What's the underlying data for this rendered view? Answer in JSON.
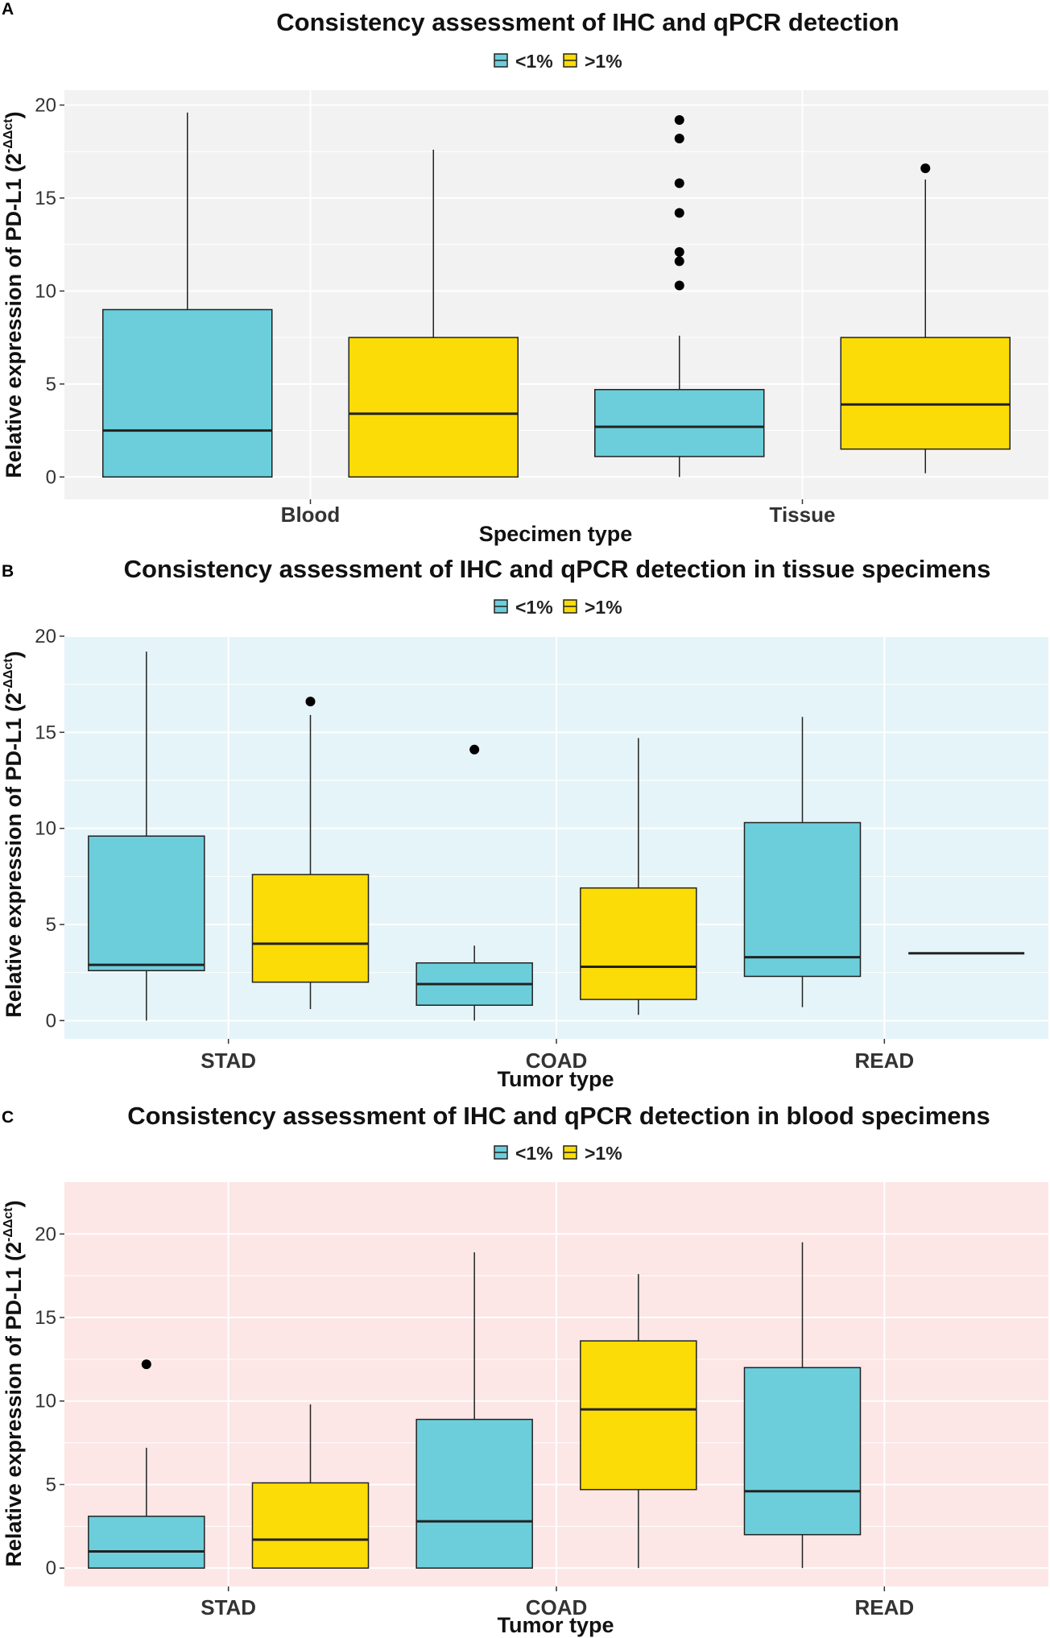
{
  "chart_data": [
    {
      "panel_label": "A",
      "type": "box",
      "title": "Consistency assessment of IHC and qPCR detection",
      "xlabel": "Specimen type",
      "ylabel_main": "Relative expression of PD-L1 (2",
      "ylabel_sup": "-ΔΔct",
      "ylabel_close": ")",
      "legend": [
        {
          "label": "<1%",
          "color": "#6ccedb"
        },
        {
          "label": ">1%",
          "color": "#fcdc06"
        }
      ],
      "categories": [
        "Blood",
        "Tissue"
      ],
      "ylim": [
        -1.2,
        20.8
      ],
      "yticks": [
        0,
        5,
        10,
        15,
        20
      ],
      "background": "#f1f2f1",
      "boxes": [
        {
          "category": "Blood",
          "group": "<1%",
          "min": 0,
          "q1": 0,
          "median": 2.5,
          "q3": 9.0,
          "max": 19.6,
          "outliers": []
        },
        {
          "category": "Blood",
          "group": ">1%",
          "min": 0,
          "q1": 0,
          "median": 3.4,
          "q3": 7.5,
          "max": 17.6,
          "outliers": []
        },
        {
          "category": "Tissue",
          "group": "<1%",
          "min": 0,
          "q1": 1.1,
          "median": 2.7,
          "q3": 4.7,
          "max": 7.6,
          "outliers": [
            10.3,
            11.6,
            12.1,
            14.2,
            15.8,
            18.2,
            19.2
          ]
        },
        {
          "category": "Tissue",
          "group": ">1%",
          "min": 0.2,
          "q1": 1.5,
          "median": 3.9,
          "q3": 7.5,
          "max": 16.0,
          "outliers": [
            16.6
          ]
        }
      ]
    },
    {
      "panel_label": "B",
      "type": "box",
      "title": "Consistency assessment of IHC and qPCR detection in tissue specimens",
      "xlabel": "Tumor type",
      "ylabel_main": "Relative expression of PD-L1 (2",
      "ylabel_sup": "-ΔΔct",
      "ylabel_close": ")",
      "legend": [
        {
          "label": "<1%",
          "color": "#6ccedb"
        },
        {
          "label": ">1%",
          "color": "#fcdc06"
        }
      ],
      "categories": [
        "STAD",
        "COAD",
        "READ"
      ],
      "ylim": [
        -0.95,
        20.0
      ],
      "yticks": [
        0,
        5,
        10,
        15,
        20
      ],
      "background": "#e5f4f8",
      "boxes": [
        {
          "category": "STAD",
          "group": "<1%",
          "min": 0,
          "q1": 2.6,
          "median": 2.9,
          "q3": 9.6,
          "max": 19.2,
          "outliers": []
        },
        {
          "category": "STAD",
          "group": ">1%",
          "min": 0.6,
          "q1": 2.0,
          "median": 4.0,
          "q3": 7.6,
          "max": 15.9,
          "outliers": [
            16.6
          ]
        },
        {
          "category": "COAD",
          "group": "<1%",
          "min": 0,
          "q1": 0.8,
          "median": 1.9,
          "q3": 3.0,
          "max": 3.9,
          "outliers": [
            14.1
          ]
        },
        {
          "category": "COAD",
          "group": ">1%",
          "min": 0.3,
          "q1": 1.1,
          "median": 2.8,
          "q3": 6.9,
          "max": 14.7,
          "outliers": []
        },
        {
          "category": "READ",
          "group": "<1%",
          "min": 0.7,
          "q1": 2.3,
          "median": 3.3,
          "q3": 10.3,
          "max": 15.8,
          "outliers": []
        },
        {
          "category": "READ",
          "group": ">1%",
          "min": 3.5,
          "q1": 3.5,
          "median": 3.5,
          "q3": 3.5,
          "max": 3.5,
          "outliers": []
        }
      ]
    },
    {
      "panel_label": "C",
      "type": "box",
      "title": "Consistency assessment of IHC and qPCR detection in blood specimens",
      "xlabel": "Tumor type",
      "ylabel_main": "Relative expression of PD-L1 (2",
      "ylabel_sup": "-ΔΔct",
      "ylabel_close": ")",
      "legend": [
        {
          "label": "<1%",
          "color": "#6ccedb"
        },
        {
          "label": ">1%",
          "color": "#fcdc06"
        }
      ],
      "categories": [
        "STAD",
        "COAD",
        "READ"
      ],
      "ylim": [
        -1.1,
        23.1
      ],
      "yticks": [
        0,
        5,
        10,
        15,
        20
      ],
      "background": "#fde6e6",
      "boxes": [
        {
          "category": "STAD",
          "group": "<1%",
          "min": 0,
          "q1": 0,
          "median": 1.0,
          "q3": 3.1,
          "max": 7.2,
          "outliers": [
            12.2
          ]
        },
        {
          "category": "STAD",
          "group": ">1%",
          "min": 0,
          "q1": 0,
          "median": 1.7,
          "q3": 5.1,
          "max": 9.8,
          "outliers": []
        },
        {
          "category": "COAD",
          "group": "<1%",
          "min": 0,
          "q1": 0,
          "median": 2.8,
          "q3": 8.9,
          "max": 18.9,
          "outliers": []
        },
        {
          "category": "COAD",
          "group": ">1%",
          "min": 0,
          "q1": 4.7,
          "median": 9.5,
          "q3": 13.6,
          "max": 17.6,
          "outliers": []
        },
        {
          "category": "READ",
          "group": "<1%",
          "min": 0,
          "q1": 2.0,
          "median": 4.6,
          "q3": 12.0,
          "max": 19.5,
          "outliers": []
        }
      ]
    }
  ]
}
